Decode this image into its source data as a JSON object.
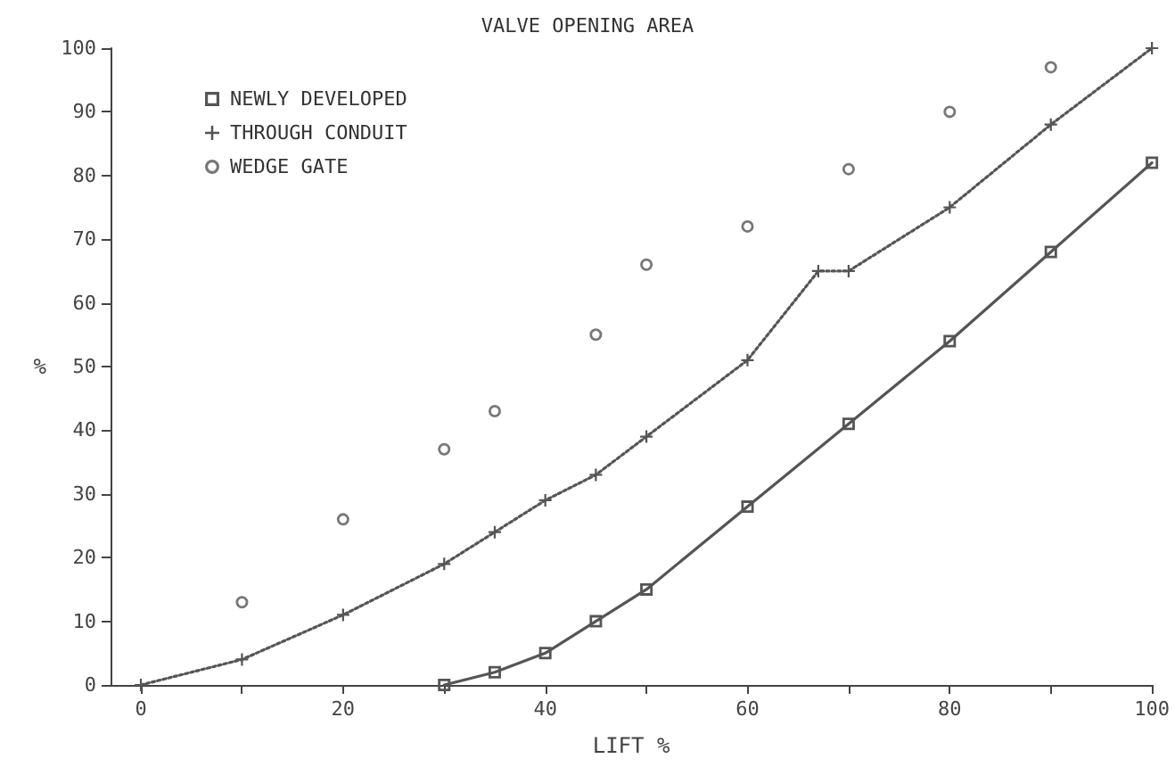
{
  "chart_data": {
    "type": "line",
    "title": "VALVE OPENING AREA",
    "xlabel": "LIFT %",
    "ylabel": "%",
    "xlim": [
      -3,
      100
    ],
    "ylim": [
      0,
      100
    ],
    "xticks": [
      0,
      {
        "value": 10,
        "label": null
      },
      20,
      {
        "value": 30,
        "label": null
      },
      40,
      {
        "value": 50,
        "label": null
      },
      60,
      {
        "value": 70,
        "label": null
      },
      80,
      {
        "value": 90,
        "label": null
      },
      100
    ],
    "yticks": [
      0,
      10,
      20,
      30,
      40,
      50,
      60,
      70,
      80,
      90,
      100
    ],
    "grid": false,
    "legend": "top left",
    "series": [
      {
        "name": "NEWLY DEVELOPED",
        "marker": "square",
        "line_style": "solid",
        "color": "#555555",
        "x": [
          30,
          35,
          40,
          45,
          50,
          60,
          70,
          80,
          90,
          100
        ],
        "values": [
          0,
          2,
          5,
          10,
          15,
          28,
          41,
          54,
          68,
          82
        ]
      },
      {
        "name": "THROUGH CONDUIT",
        "marker": "cross",
        "line_style": "dotted",
        "color": "#555555",
        "x": [
          0,
          10,
          20,
          30,
          35,
          40,
          45,
          50,
          60,
          67,
          70,
          80,
          90,
          100
        ],
        "values": [
          0,
          4,
          11,
          19,
          24,
          29,
          33,
          39,
          51,
          65,
          65,
          75,
          88,
          100
        ]
      },
      {
        "name": "WEDGE GATE",
        "type": "scatter",
        "marker": "circle",
        "color": "#555555",
        "x": [
          10,
          20,
          30,
          35,
          45,
          50,
          60,
          70,
          80,
          90
        ],
        "values": [
          13,
          26,
          37,
          43,
          55,
          66,
          72,
          81,
          90,
          97
        ]
      }
    ]
  }
}
